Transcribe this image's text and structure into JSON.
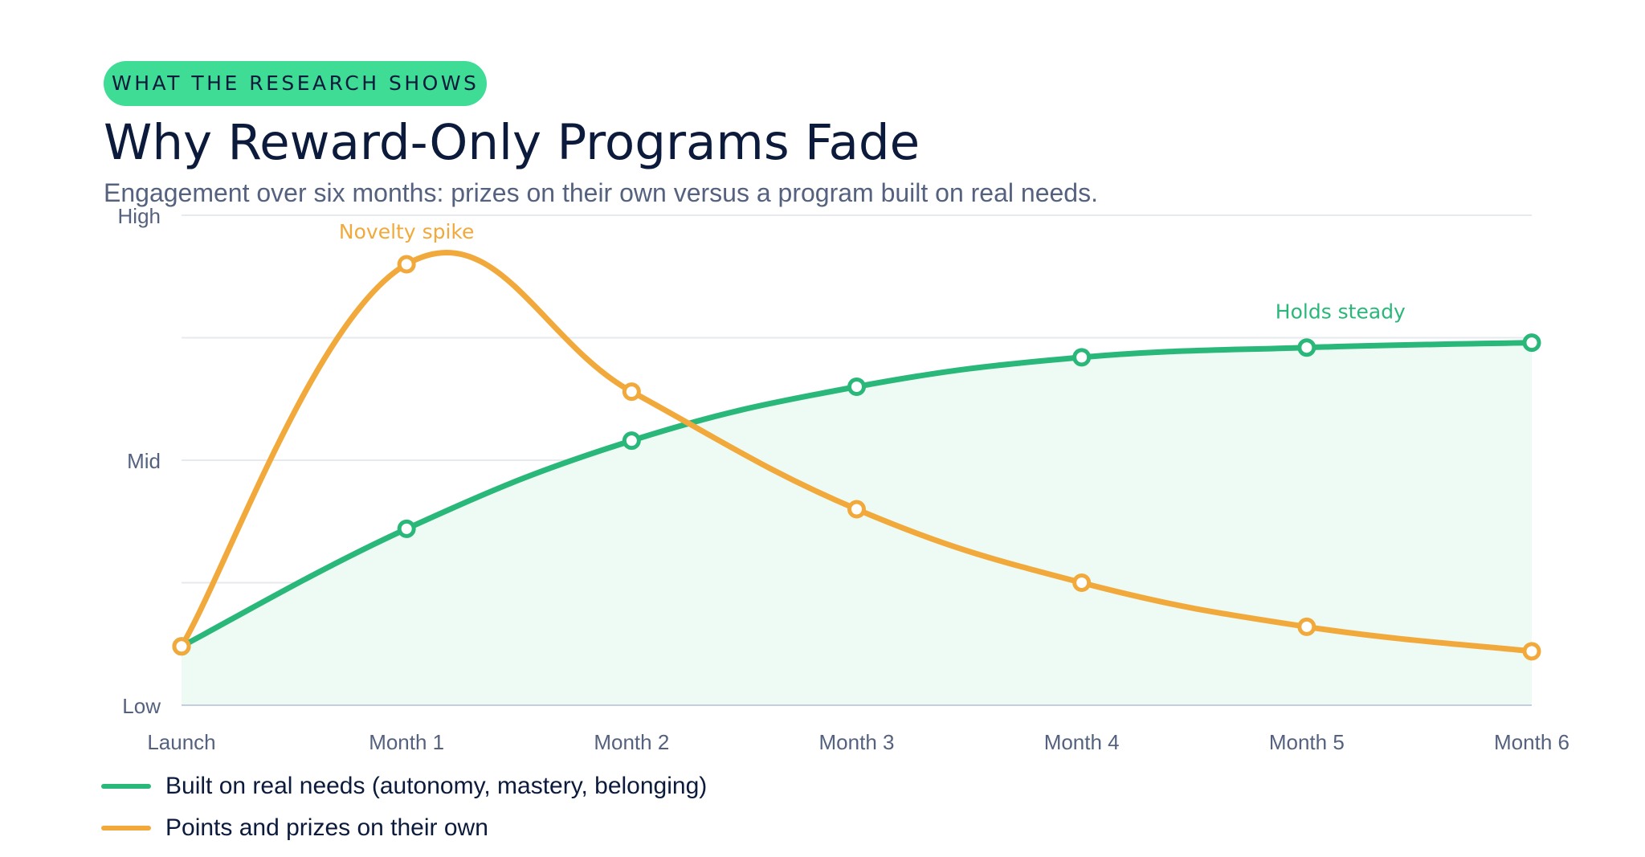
{
  "header": {
    "eyebrow": "WHAT THE RESEARCH SHOWS",
    "title": "Why Reward-Only Programs Fade",
    "subtitle": "Engagement over six months: prizes on their own versus a program built on real needs."
  },
  "chart_data": {
    "type": "line",
    "categories": [
      "Launch",
      "Month 1",
      "Month 2",
      "Month 3",
      "Month 4",
      "Month 5",
      "Month 6"
    ],
    "y_tick_labels": [
      "Low",
      "Mid",
      "High"
    ],
    "ylim": [
      0,
      100
    ],
    "grid": true,
    "legend_position": "bottom-left",
    "series": [
      {
        "name": "Built on real needs (autonomy, mastery, belonging)",
        "color": "#2ab87a",
        "area_fill": "#edfbf4",
        "values": [
          12,
          36,
          54,
          65,
          71,
          73,
          74
        ]
      },
      {
        "name": "Points and prizes on their own",
        "color": "#f2a93b",
        "values": [
          12,
          90,
          64,
          40,
          25,
          16,
          11
        ]
      }
    ],
    "annotations": [
      {
        "text": "Novelty spike",
        "series": 1,
        "category": "Month 1",
        "color": "#f2a93b"
      },
      {
        "text": "Holds steady",
        "series": 0,
        "category": "Month 5",
        "color": "#2ab87a"
      }
    ]
  },
  "colors": {
    "title": "#0c1a3b",
    "subtitle": "#55627f",
    "eyebrow_bg": "#3edc94",
    "axis_text": "#55627f",
    "grid": "#e6e9ee",
    "baseline": "#c5cde0"
  }
}
